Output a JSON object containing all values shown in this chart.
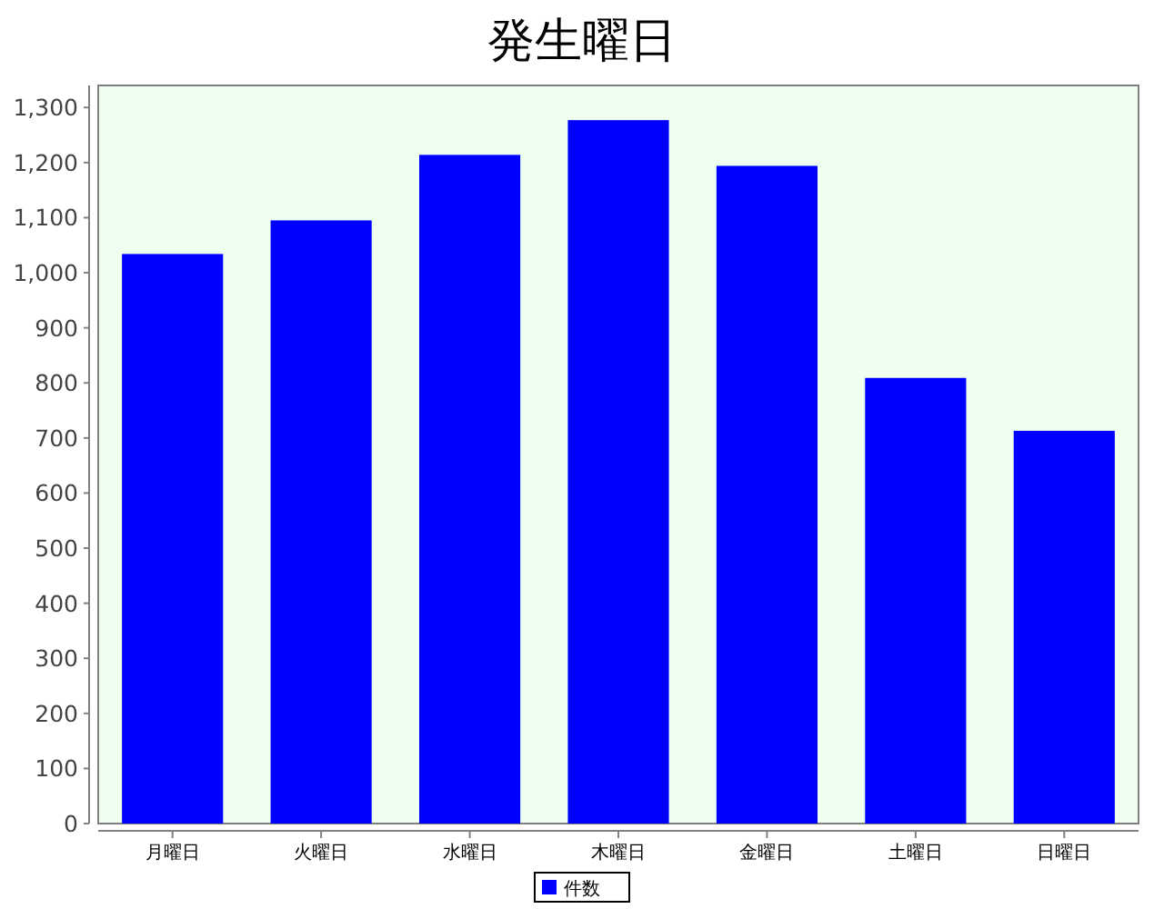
{
  "chart_data": {
    "type": "bar",
    "title": "発生曜日",
    "categories": [
      "月曜日",
      "火曜日",
      "水曜日",
      "木曜日",
      "金曜日",
      "土曜日",
      "日曜日"
    ],
    "series": [
      {
        "name": "件数",
        "color": "#0000ff",
        "values": [
          1034,
          1095,
          1214,
          1277,
          1194,
          809,
          713
        ]
      }
    ],
    "ylim": [
      0,
      1340
    ],
    "yticks": [
      0,
      {
        "value": 100,
        "label": "100"
      },
      {
        "value": 200,
        "label": "200"
      },
      {
        "value": 300,
        "label": "300"
      },
      {
        "value": 400,
        "label": "400"
      },
      {
        "value": 500,
        "label": "500"
      },
      {
        "value": 600,
        "label": "600"
      },
      {
        "value": 700,
        "label": "700"
      },
      {
        "value": 800,
        "label": "800"
      },
      {
        "value": 900,
        "label": "900"
      },
      {
        "value": 1000,
        "label": "1,000"
      },
      {
        "value": 1100,
        "label": "1,100"
      },
      {
        "value": 1200,
        "label": "1,200"
      },
      {
        "value": 1300,
        "label": "1,300"
      }
    ],
    "legend": "bottom",
    "grid": false
  }
}
